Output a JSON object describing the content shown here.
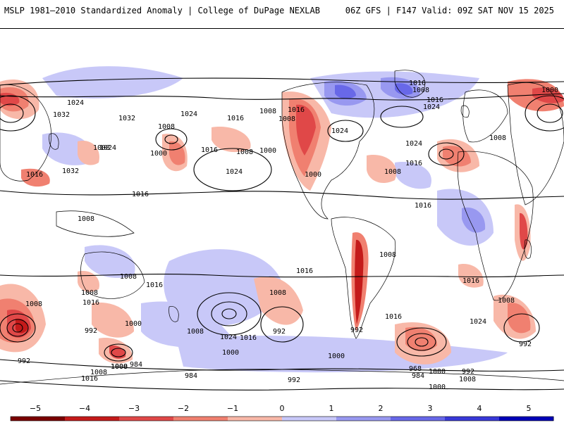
{
  "header": {
    "title": "MSLP 1981–2010 Standardized Anomaly | College of DuPage NEXLAB",
    "run_info": "06Z GFS | F147 Valid: 09Z SAT NOV 15 2025"
  },
  "map": {
    "projection": "equirectangular, global",
    "anomaly_units": "standard deviations",
    "isobar_labels": [
      "1016",
      "1008",
      "1016",
      "1024",
      "1000",
      "1024",
      "1032",
      "1032",
      "1008",
      "1024",
      "1016",
      "1008",
      "1016",
      "1008",
      "1008",
      "1024",
      "1024",
      "1008",
      "1016",
      "1000",
      "1008",
      "1032",
      "1016",
      "1024",
      "1016",
      "1016",
      "1000",
      "1008",
      "1000",
      "1024",
      "1008",
      "1016",
      "1016",
      "1008",
      "1016",
      "1008",
      "1008",
      "1016",
      "1008",
      "1016",
      "1008",
      "1008",
      "1016",
      "992",
      "1000",
      "1008",
      "1024",
      "1016",
      "992",
      "1000",
      "1008",
      "1024",
      "992",
      "984",
      "992",
      "1000",
      "1008",
      "1000",
      "968",
      "984",
      "992",
      "1008",
      "992",
      "1016",
      "1008",
      "1000",
      "984",
      "992",
      "1008",
      "1000",
      "1016"
    ]
  },
  "colorbar": {
    "labels": [
      "−5",
      "−4",
      "−3",
      "−2",
      "−1",
      "0",
      "1",
      "2",
      "3",
      "4",
      "5"
    ],
    "colors": {
      "neg5": "#7a0000",
      "neg4": "#c41a1a",
      "neg3": "#e04848",
      "neg2": "#f08070",
      "neg1": "#f8b8a8",
      "zero": "#ffffff",
      "pos1": "#c8c8f8",
      "pos2": "#9898f0",
      "pos3": "#6868e8",
      "pos4": "#3838d8",
      "pos5": "#0000b8"
    }
  }
}
